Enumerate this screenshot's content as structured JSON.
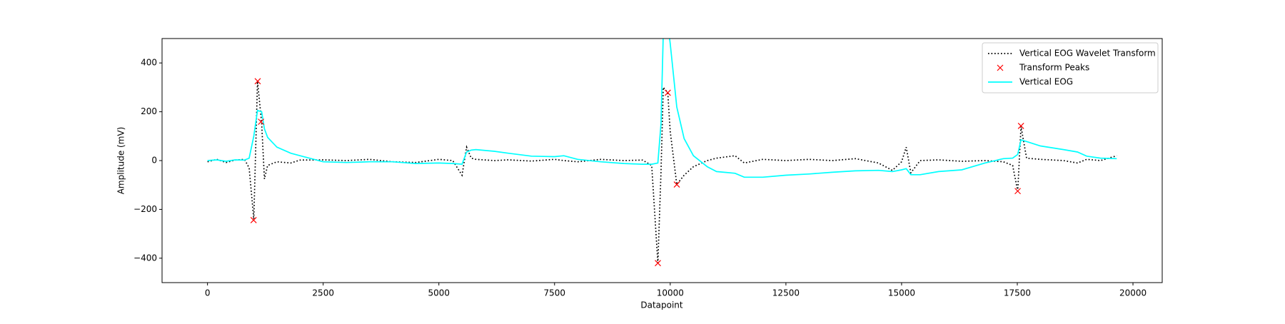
{
  "chart_data": {
    "type": "line",
    "xlabel": "Datapoint",
    "ylabel": "Amplitude (mV)",
    "xlim": [
      -982,
      20632
    ],
    "ylim": [
      -500,
      500
    ],
    "xticks": [
      0,
      2500,
      5000,
      7500,
      10000,
      12500,
      15000,
      17500,
      20000
    ],
    "yticks": [
      {
        "value": -400,
        "label": "−400"
      },
      {
        "value": -200,
        "label": "−200"
      },
      0,
      200,
      400
    ],
    "legend": "upper right",
    "x": [
      0,
      200,
      400,
      600,
      800,
      900,
      1000,
      1080,
      1170,
      1230,
      1300,
      1500,
      1800,
      2000,
      2500,
      3000,
      3500,
      4000,
      4500,
      5000,
      5300,
      5500,
      5600,
      5700,
      5800,
      6200,
      6500,
      7000,
      7500,
      7700,
      8000,
      8500,
      9000,
      9400,
      9600,
      9733,
      9800,
      9850,
      9947,
      10000,
      10142,
      10300,
      10500,
      10800,
      11000,
      11400,
      11600,
      12000,
      12500,
      13000,
      13500,
      14000,
      14500,
      14800,
      15000,
      15100,
      15200,
      15400,
      15800,
      16300,
      16800,
      17200,
      17400,
      17509,
      17580,
      17700,
      18000,
      18500,
      18800,
      19000,
      19300,
      19650
    ],
    "series": [
      {
        "name": "Vertical EOG Wavelet Transform",
        "color": "#000000",
        "style": "dotted",
        "values": [
          -5,
          5,
          -8,
          2,
          5,
          -30,
          -240,
          325,
          155,
          -75,
          -20,
          -5,
          -10,
          2,
          3,
          0,
          5,
          -5,
          -8,
          5,
          0,
          -60,
          55,
          10,
          5,
          0,
          3,
          -2,
          5,
          0,
          -5,
          5,
          0,
          2,
          -20,
          -420,
          -50,
          300,
          278,
          120,
          -98,
          -60,
          -25,
          0,
          10,
          20,
          -10,
          5,
          0,
          5,
          0,
          8,
          -10,
          -40,
          -5,
          55,
          -50,
          0,
          3,
          -3,
          0,
          -5,
          -20,
          -125,
          140,
          10,
          5,
          0,
          -10,
          5,
          0,
          20
        ]
      },
      {
        "name": "Transform Peaks",
        "color": "#ff0000",
        "style": "marker",
        "x": [
          996,
          1085,
          1157,
          9733,
          9947,
          10142,
          17509,
          17580
        ],
        "values": [
          -244,
          325,
          159,
          -420,
          278,
          -98,
          -125,
          142
        ]
      },
      {
        "name": "Vertical EOG",
        "color": "#00ffff",
        "style": "solid",
        "values": [
          0,
          3,
          -3,
          3,
          2,
          10,
          100,
          205,
          200,
          130,
          95,
          55,
          30,
          20,
          -5,
          -8,
          -5,
          -5,
          -12,
          -10,
          -12,
          -15,
          35,
          43,
          45,
          38,
          30,
          18,
          16,
          20,
          5,
          -5,
          -12,
          -15,
          -15,
          -10,
          150,
          520,
          560,
          480,
          220,
          90,
          20,
          -25,
          -45,
          -52,
          -68,
          -68,
          -60,
          -55,
          -48,
          -42,
          -40,
          -45,
          -38,
          -33,
          -58,
          -58,
          -45,
          -38,
          -10,
          8,
          10,
          25,
          85,
          78,
          60,
          45,
          35,
          18,
          10,
          8
        ]
      }
    ]
  }
}
